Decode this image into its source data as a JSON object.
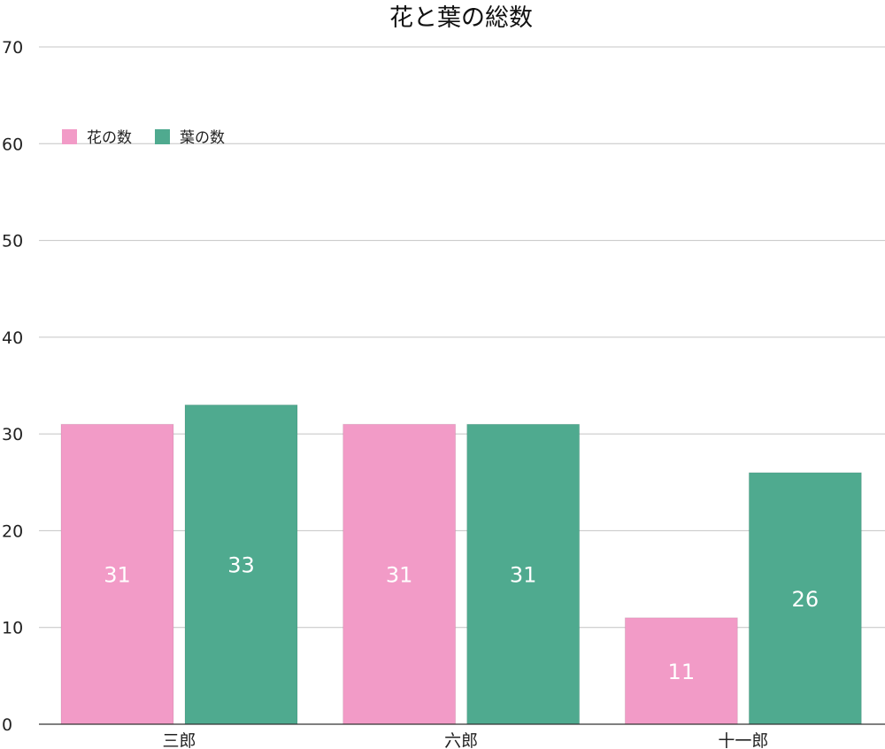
{
  "chart_data": {
    "type": "bar",
    "title": "花と葉の総数",
    "xlabel": "",
    "ylabel": "",
    "categories": [
      "三郎",
      "六郎",
      "十一郎"
    ],
    "series": [
      {
        "name": "花の数",
        "color": "#F29BC7",
        "values": [
          31,
          31,
          11
        ]
      },
      {
        "name": "葉の数",
        "color": "#4FAA8F",
        "values": [
          33,
          31,
          26
        ]
      }
    ],
    "ylim": [
      0,
      70
    ],
    "yticks": [
      "0",
      "10",
      "20",
      "30",
      "40",
      "50",
      "60",
      "70"
    ],
    "grid": true,
    "legend_position": "top-left",
    "data_labels": true
  }
}
